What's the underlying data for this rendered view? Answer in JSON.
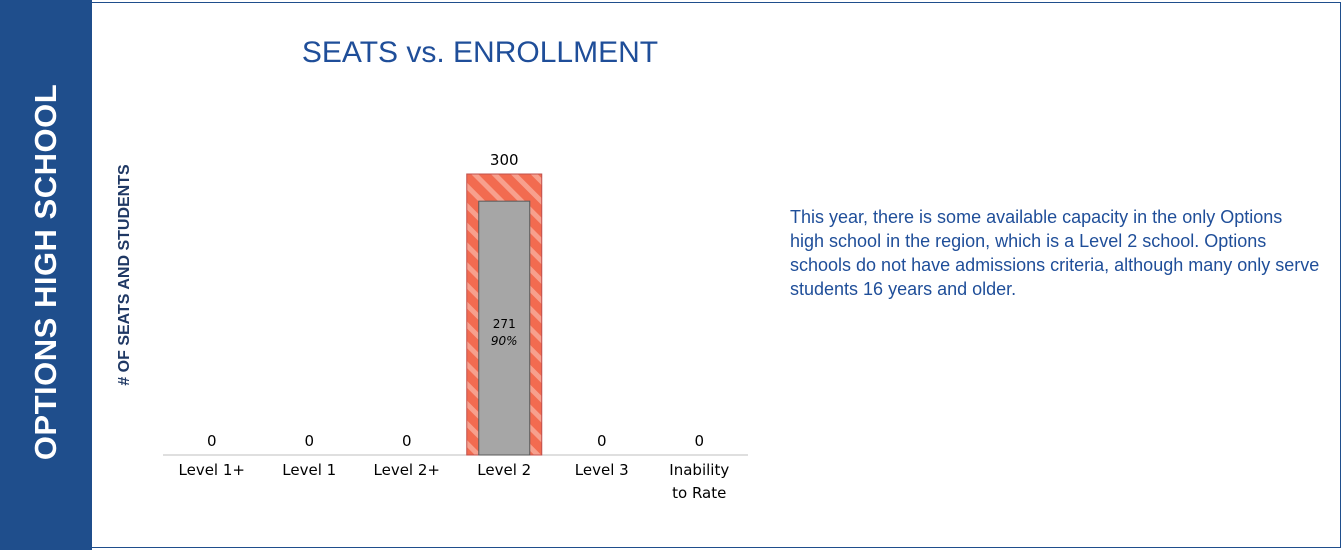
{
  "side_title": "OPTIONS HIGH SCHOOL",
  "chart_data": {
    "type": "bar",
    "title": "SEATS vs. ENROLLMENT",
    "y_label": "# OF SEATS AND STUDENTS",
    "categories": [
      "Level 1+",
      "Level 1",
      "Level 2+",
      "Level 2",
      "Level 3",
      "Inability to Rate"
    ],
    "series": [
      {
        "color": "#f26b50",
        "values": [
          0,
          0,
          0,
          300,
          0,
          0
        ]
      },
      {
        "color": "#a6a6a6",
        "values": [
          null,
          null,
          null,
          271,
          null,
          null
        ],
        "percent_labels": [
          null,
          null,
          null,
          "90%",
          null,
          null
        ]
      }
    ],
    "ylim": [
      0,
      300
    ]
  },
  "description": "This year, there is some available capacity in the only Options high school in the region, which is a Level 2 school. Options schools do not have admissions criteria, although many only serve students 16 years and older."
}
